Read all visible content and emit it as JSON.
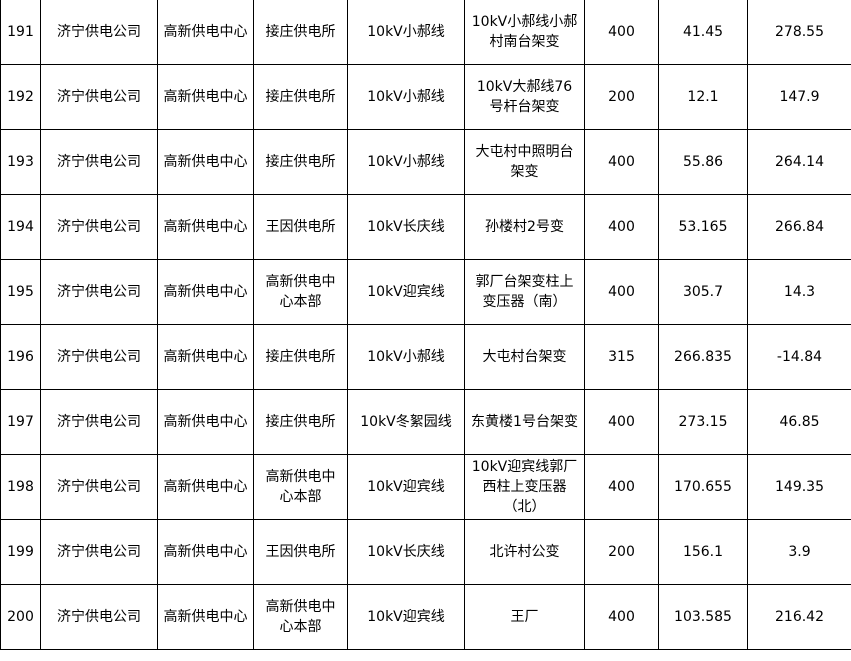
{
  "rows": [
    [
      "191",
      "济宁供电公司",
      "高新供电中心",
      "接庄供电所",
      "10kV小郝线",
      "10kV小郝线小郝村南台架变",
      "400",
      "41.45",
      "278.55"
    ],
    [
      "192",
      "济宁供电公司",
      "高新供电中心",
      "接庄供电所",
      "10kV小郝线",
      "10kV大郝线76号杆台架变",
      "200",
      "12.1",
      "147.9"
    ],
    [
      "193",
      "济宁供电公司",
      "高新供电中心",
      "接庄供电所",
      "10kV小郝线",
      "大屯村中照明台架变",
      "400",
      "55.86",
      "264.14"
    ],
    [
      "194",
      "济宁供电公司",
      "高新供电中心",
      "王因供电所",
      "10kV长庆线",
      "孙楼村2号变",
      "400",
      "53.165",
      "266.84"
    ],
    [
      "195",
      "济宁供电公司",
      "高新供电中心",
      "高新供电中心本部",
      "10kV迎宾线",
      "郭厂台架变柱上变压器（南）",
      "400",
      "305.7",
      "14.3"
    ],
    [
      "196",
      "济宁供电公司",
      "高新供电中心",
      "接庄供电所",
      "10kV小郝线",
      "大屯村台架变",
      "315",
      "266.835",
      "-14.84"
    ],
    [
      "197",
      "济宁供电公司",
      "高新供电中心",
      "接庄供电所",
      "10kV冬絮园线",
      "东黄楼1号台架变",
      "400",
      "273.15",
      "46.85"
    ],
    [
      "198",
      "济宁供电公司",
      "高新供电中心",
      "高新供电中心本部",
      "10kV迎宾线",
      "10kV迎宾线郭厂西柱上变压器（北）",
      "400",
      "170.655",
      "149.35"
    ],
    [
      "199",
      "济宁供电公司",
      "高新供电中心",
      "王因供电所",
      "10kV长庆线",
      "北许村公变",
      "200",
      "156.1",
      "3.9"
    ],
    [
      "200",
      "济宁供电公司",
      "高新供电中心",
      "高新供电中心本部",
      "10kV迎宾线",
      "王厂",
      "400",
      "103.585",
      "216.42"
    ]
  ]
}
